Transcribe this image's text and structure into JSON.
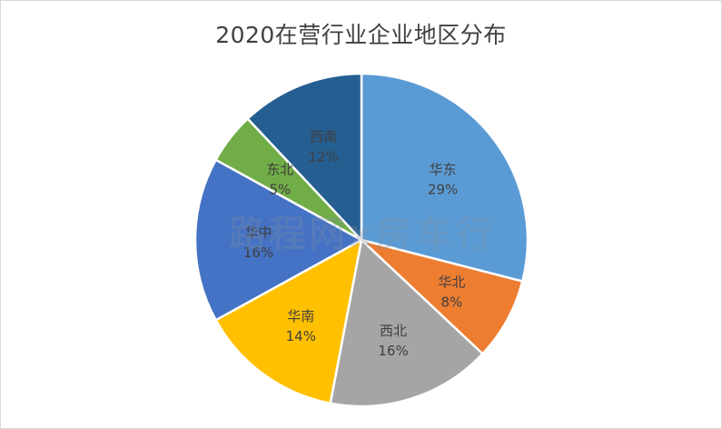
{
  "chart_data": {
    "type": "pie",
    "title": "2020在营行业企业地区分布",
    "slices": [
      {
        "label": "华东",
        "value": 29,
        "value_label": "29%",
        "color": "#5B9BD5"
      },
      {
        "label": "华北",
        "value": 8,
        "value_label": "8%",
        "color": "#ED7D31"
      },
      {
        "label": "西北",
        "value": 16,
        "value_label": "16%",
        "color": "#A5A5A5"
      },
      {
        "label": "华南",
        "value": 14,
        "value_label": "14%",
        "color": "#FFC000"
      },
      {
        "label": "华中",
        "value": 16,
        "value_label": "16%",
        "color": "#4472C4"
      },
      {
        "label": "东北",
        "value": 5,
        "value_label": "5%",
        "color": "#70AD47"
      },
      {
        "label": "西南",
        "value": 12,
        "value_label": "12%",
        "color": "#255E91"
      }
    ],
    "legend": "none",
    "start": "12 o'clock, clockwise"
  },
  "watermark": "路程网x房车行"
}
